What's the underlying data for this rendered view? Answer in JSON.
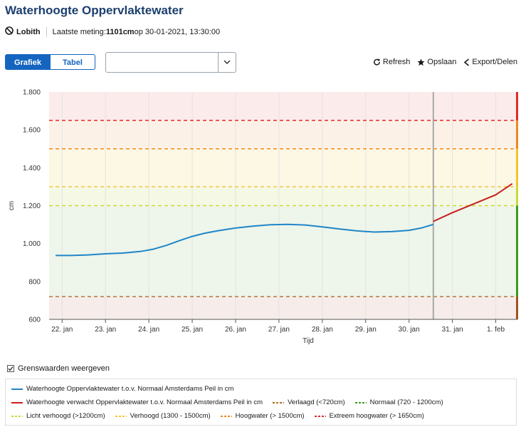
{
  "title": "Waterhoogte Oppervlaktewater",
  "meta": {
    "location": "Lobith",
    "last_label": "Laatste meting: ",
    "last_value": "1101cm",
    "last_rest": " op 30-01-2021, 13:30:00"
  },
  "tabs": [
    {
      "label": "Grafiek",
      "active": true
    },
    {
      "label": "Tabel",
      "active": false
    }
  ],
  "select": {
    "value": ""
  },
  "actions": {
    "refresh": "Refresh",
    "save": "Opslaan",
    "export": "Export/Delen"
  },
  "chart_data": {
    "type": "line",
    "xlabel": "Tijd",
    "ylabel": "cm",
    "ylim": [
      600,
      1800
    ],
    "yticks": [
      600,
      800,
      1000,
      1200,
      1400,
      1600,
      1800
    ],
    "ytick_labels": [
      "600",
      "800",
      "1.000",
      "1.200",
      "1.400",
      "1.600",
      "1.800"
    ],
    "xlim": [
      21.7,
      32.5
    ],
    "xticks": [
      22,
      23,
      24,
      25,
      26,
      27,
      28,
      29,
      30,
      31,
      32
    ],
    "xtick_labels": [
      "22. jan",
      "23. jan",
      "24. jan",
      "25. jan",
      "26. jan",
      "27. jan",
      "28. jan",
      "29. jan",
      "30. jan",
      "31. jan",
      "1. feb"
    ],
    "now_x": 30.56,
    "bands": [
      {
        "from": 600,
        "to": 720,
        "color": "#f6ecea"
      },
      {
        "from": 720,
        "to": 1200,
        "color": "#eef5ea"
      },
      {
        "from": 1200,
        "to": 1300,
        "color": "#f5f8e4"
      },
      {
        "from": 1300,
        "to": 1500,
        "color": "#fcf8e4"
      },
      {
        "from": 1500,
        "to": 1650,
        "color": "#fcf1e6"
      },
      {
        "from": 1650,
        "to": 1800,
        "color": "#fbeceb"
      }
    ],
    "thresholds": [
      {
        "value": 720,
        "color": "#b06a2a"
      },
      {
        "value": 1200,
        "color": "#c9d93a"
      },
      {
        "value": 1300,
        "color": "#f2c432"
      },
      {
        "value": 1500,
        "color": "#ef8a1e"
      },
      {
        "value": 1650,
        "color": "#e02b2b"
      }
    ],
    "series": [
      {
        "name": "Waterhoogte Oppervlaktewater t.o.v. Normaal Amsterdams Peil in cm",
        "color": "#1f86c8",
        "x": [
          21.85,
          22.2,
          22.6,
          23.0,
          23.4,
          23.8,
          24.1,
          24.4,
          24.7,
          25.0,
          25.3,
          25.6,
          26.0,
          26.4,
          26.8,
          27.2,
          27.6,
          28.0,
          28.4,
          28.8,
          29.2,
          29.6,
          30.0,
          30.3,
          30.56
        ],
        "y": [
          937,
          937,
          940,
          946,
          950,
          958,
          970,
          990,
          1015,
          1038,
          1055,
          1068,
          1082,
          1092,
          1099,
          1101,
          1098,
          1088,
          1077,
          1067,
          1061,
          1063,
          1070,
          1083,
          1101
        ]
      },
      {
        "name": "Waterhoogte verwacht Oppervlaktewater t.o.v. Normaal Amsterdams Peil in cm",
        "color": "#c81e1e",
        "x": [
          30.56,
          31.0,
          31.5,
          32.0,
          32.38
        ],
        "y": [
          1117,
          1163,
          1210,
          1257,
          1316
        ]
      }
    ]
  },
  "legend": {
    "checkbox_label": "Grenswaarden weergeven",
    "checked": true,
    "rows": [
      [
        {
          "label": "Waterhoogte Oppervlaktewater t.o.v. Normaal Amsterdams Peil in cm",
          "color": "#1f86c8",
          "style": "line"
        }
      ],
      [
        {
          "label": "Waterhoogte verwacht Oppervlaktewater t.o.v. Normaal Amsterdams Peil in cm",
          "color": "#c81e1e",
          "style": "line"
        },
        {
          "label": "Verlaagd (<720cm)",
          "color": "#b06a2a",
          "style": "dash"
        },
        {
          "label": "Normaal (720 - 1200cm)",
          "color": "#3a9a1e",
          "style": "dash"
        }
      ],
      [
        {
          "label": "Licht verhoogd (>1200cm)",
          "color": "#c9d93a",
          "style": "dash"
        },
        {
          "label": "Verhoogd (1300 - 1500cm)",
          "color": "#f2c432",
          "style": "dash"
        },
        {
          "label": "Hoogwater (> 1500cm)",
          "color": "#ef8a1e",
          "style": "dash"
        },
        {
          "label": "Extreem hoogwater (> 1650cm)",
          "color": "#e02b2b",
          "style": "dash"
        }
      ]
    ]
  }
}
